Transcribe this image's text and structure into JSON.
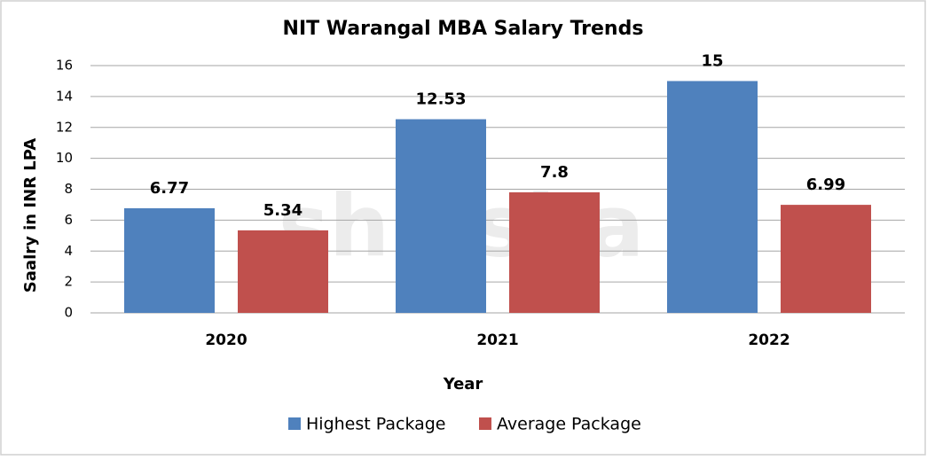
{
  "chart_data": {
    "type": "bar",
    "title": "NIT Warangal MBA Salary Trends",
    "watermark": "shiksha",
    "x_label": "Year",
    "y_label": "Saalry in INR LPA",
    "categories": [
      "2020",
      "2021",
      "2022"
    ],
    "series": [
      {
        "name": "Highest Package",
        "color": "#4f81bd",
        "values": [
          6.77,
          12.53,
          15
        ]
      },
      {
        "name": "Average Package",
        "color": "#c0504d",
        "values": [
          5.34,
          7.8,
          6.99
        ]
      }
    ],
    "ylim": [
      0,
      16
    ],
    "yticks": [
      0,
      2,
      4,
      6,
      8,
      10,
      12,
      14,
      16
    ],
    "grid": true,
    "legend": "bottom"
  }
}
